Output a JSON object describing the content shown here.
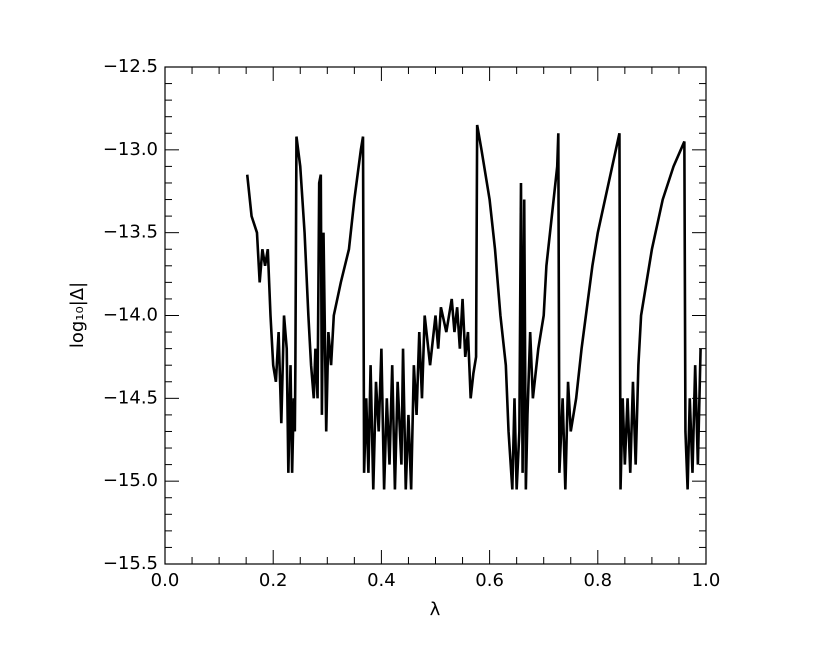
{
  "chart_data": {
    "type": "line",
    "x_label": "λ",
    "y_label": "log₁₀|Δ|",
    "xlim": [
      0,
      1
    ],
    "ylim": [
      -15.5,
      -12.5
    ],
    "xticks": [
      {
        "value": 0,
        "label": "0.0"
      },
      {
        "value": 0.2,
        "label": "0.2"
      },
      {
        "value": 0.4,
        "label": "0.4"
      },
      {
        "value": 0.6,
        "label": "0.6"
      },
      {
        "value": 0.8,
        "label": "0.8"
      },
      {
        "value": 1,
        "label": "1.0"
      }
    ],
    "yticks": [
      {
        "value": -15.5,
        "label": "−15.5"
      },
      {
        "value": -15,
        "label": "−15.0"
      },
      {
        "value": -14.5,
        "label": "−14.5"
      },
      {
        "value": -14,
        "label": "−14.0"
      },
      {
        "value": -13.5,
        "label": "−13.5"
      },
      {
        "value": -13,
        "label": "−13.0"
      },
      {
        "value": -12.5,
        "label": "−12.5"
      }
    ],
    "color": "#000000",
    "series": [
      {
        "color": "#000000",
        "x": [
          0.152,
          0.16,
          0.17,
          0.175,
          0.18,
          0.185,
          0.19,
          0.195,
          0.2,
          0.205,
          0.21,
          0.215,
          0.22,
          0.225,
          0.228,
          0.232,
          0.235,
          0.238,
          0.24,
          0.241,
          0.243,
          0.25,
          0.258,
          0.265,
          0.27,
          0.275,
          0.278,
          0.282,
          0.285,
          0.288,
          0.29,
          0.293,
          0.298,
          0.302,
          0.307,
          0.312,
          0.325,
          0.34,
          0.35,
          0.362,
          0.366,
          0.368,
          0.372,
          0.376,
          0.38,
          0.385,
          0.39,
          0.395,
          0.4,
          0.405,
          0.41,
          0.415,
          0.42,
          0.425,
          0.43,
          0.437,
          0.44,
          0.445,
          0.45,
          0.455,
          0.46,
          0.465,
          0.47,
          0.475,
          0.48,
          0.49,
          0.5,
          0.505,
          0.51,
          0.52,
          0.53,
          0.535,
          0.54,
          0.545,
          0.55,
          0.555,
          0.56,
          0.565,
          0.57,
          0.575,
          0.577,
          0.585,
          0.6,
          0.61,
          0.62,
          0.63,
          0.635,
          0.642,
          0.646,
          0.65,
          0.655,
          0.658,
          0.661,
          0.664,
          0.667,
          0.67,
          0.675,
          0.68,
          0.69,
          0.7,
          0.705,
          0.715,
          0.725,
          0.727,
          0.729,
          0.735,
          0.74,
          0.745,
          0.75,
          0.76,
          0.77,
          0.78,
          0.79,
          0.8,
          0.82,
          0.84,
          0.842,
          0.846,
          0.85,
          0.855,
          0.86,
          0.865,
          0.87,
          0.875,
          0.88,
          0.89,
          0.9,
          0.92,
          0.94,
          0.96,
          0.962,
          0.966,
          0.97,
          0.975,
          0.98,
          0.985,
          0.99
        ],
        "values": [
          -13.15,
          -13.4,
          -13.5,
          -13.8,
          -13.6,
          -13.7,
          -13.6,
          -14.0,
          -14.3,
          -14.4,
          -14.1,
          -14.65,
          -14.0,
          -14.2,
          -14.95,
          -14.3,
          -14.95,
          -14.5,
          -14.7,
          -14.3,
          -12.92,
          -13.1,
          -13.5,
          -14.0,
          -14.3,
          -14.5,
          -14.2,
          -14.5,
          -13.2,
          -13.15,
          -14.6,
          -13.5,
          -14.7,
          -14.1,
          -14.3,
          -14.0,
          -13.8,
          -13.6,
          -13.3,
          -13.0,
          -12.92,
          -14.95,
          -14.5,
          -14.95,
          -14.3,
          -15.05,
          -14.4,
          -14.7,
          -14.2,
          -15.05,
          -14.5,
          -14.9,
          -14.3,
          -15.05,
          -14.4,
          -14.9,
          -14.2,
          -15.05,
          -14.6,
          -15.05,
          -14.3,
          -14.6,
          -14.1,
          -14.5,
          -14.0,
          -14.3,
          -14.0,
          -14.2,
          -13.95,
          -14.1,
          -13.9,
          -14.1,
          -13.95,
          -14.2,
          -13.9,
          -14.25,
          -14.1,
          -14.5,
          -14.35,
          -14.25,
          -12.85,
          -13.0,
          -13.3,
          -13.6,
          -14.0,
          -14.3,
          -14.7,
          -15.05,
          -14.5,
          -15.05,
          -14.7,
          -13.2,
          -14.95,
          -13.3,
          -15.05,
          -14.6,
          -14.1,
          -14.5,
          -14.2,
          -14.0,
          -13.7,
          -13.4,
          -13.1,
          -12.9,
          -14.95,
          -14.5,
          -15.05,
          -14.4,
          -14.7,
          -14.5,
          -14.2,
          -13.95,
          -13.7,
          -13.5,
          -13.2,
          -12.9,
          -15.05,
          -14.5,
          -14.9,
          -14.5,
          -14.95,
          -14.4,
          -14.9,
          -14.3,
          -14.0,
          -13.8,
          -13.6,
          -13.3,
          -13.1,
          -12.95,
          -14.7,
          -15.05,
          -14.5,
          -14.95,
          -14.3,
          -14.9,
          -14.2
        ]
      }
    ]
  }
}
